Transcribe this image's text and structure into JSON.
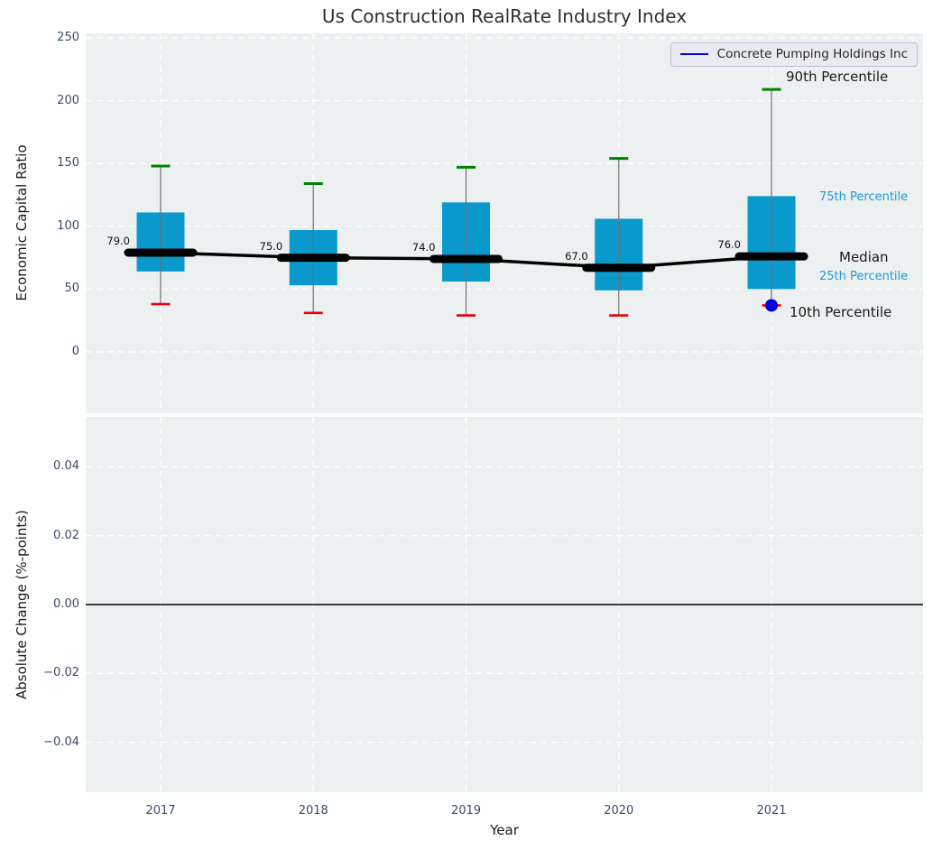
{
  "title": "Us Construction RealRate Industry Index",
  "legend": {
    "label": "Concrete Pumping Holdings Inc"
  },
  "x_axis": {
    "label": "Year",
    "ticks": [
      "2017",
      "2018",
      "2019",
      "2020",
      "2021"
    ]
  },
  "top_plot": {
    "ylabel": "Economic Capital Ratio",
    "ytick_labels": [
      "250",
      "200",
      "150",
      "100",
      "50",
      "0"
    ],
    "ytick_values": [
      250,
      200,
      150,
      100,
      50,
      0
    ]
  },
  "bottom_plot": {
    "ylabel": "Absolute Change (%-points)",
    "ytick_labels": [
      "0.04",
      "0.02",
      "0.00",
      "−0.02",
      "−0.04"
    ],
    "ytick_values": [
      0.04,
      0.02,
      0,
      -0.02,
      -0.04
    ],
    "zero_line": true
  },
  "annotations": [
    {
      "text": "90th Percentile",
      "anchor": "p90",
      "color": "#1a1a1a",
      "size": 15
    },
    {
      "text": "75th Percentile",
      "anchor": "p75",
      "color": "#1c9bd0",
      "size": 13
    },
    {
      "text": "Median",
      "anchor": "median",
      "color": "#1a1a1a",
      "size": 15
    },
    {
      "text": "25th Percentile",
      "anchor": "p25",
      "color": "#1c9bd0",
      "size": 13
    },
    {
      "text": "10th Percentile",
      "anchor": "p10",
      "color": "#1a1a1a",
      "size": 15
    }
  ],
  "colors": {
    "plot_bg": "#ecf0f1",
    "grid": "#ffffff",
    "box_fill": "#0999cd",
    "whisker": "#707070",
    "cap_high": "#008000",
    "cap_low": "#e8000b",
    "median": "#000000",
    "company": "#0000dd",
    "tick": "#3b4a68",
    "zero_line": "#000000"
  },
  "chart_data": [
    {
      "type": "box",
      "title": "Us Construction RealRate Industry Index",
      "xlabel": "Year",
      "ylabel": "Economic Capital Ratio",
      "categories": [
        "2017",
        "2018",
        "2019",
        "2020",
        "2021"
      ],
      "series": [
        {
          "name": "90th Percentile",
          "values": [
            148,
            134,
            147,
            154,
            209
          ]
        },
        {
          "name": "75th Percentile",
          "values": [
            111,
            97,
            119,
            106,
            124
          ]
        },
        {
          "name": "Median",
          "values": [
            79,
            75,
            74,
            67,
            76
          ]
        },
        {
          "name": "25th Percentile",
          "values": [
            64,
            53,
            56,
            49,
            50
          ]
        },
        {
          "name": "10th Percentile",
          "values": [
            38,
            31,
            29,
            29,
            37
          ]
        }
      ],
      "median_labels": [
        "79.0",
        "75.0",
        "74.0",
        "67.0",
        "76.0"
      ],
      "company_point": {
        "name": "Concrete Pumping Holdings Inc",
        "year": "2021",
        "value": 37
      },
      "ylim": [
        -48.9,
        253.6
      ],
      "yticks": [
        250,
        200,
        150,
        100,
        50,
        0
      ],
      "grid": true,
      "legend_position": "upper right"
    },
    {
      "type": "line",
      "ylabel": "Absolute Change (%-points)",
      "x": [],
      "values": [],
      "ylim": [
        -0.0545,
        0.0545
      ],
      "yticks": [
        0.04,
        0.02,
        0,
        -0.02,
        -0.04
      ],
      "grid": true,
      "zero_line_at": 0
    }
  ]
}
